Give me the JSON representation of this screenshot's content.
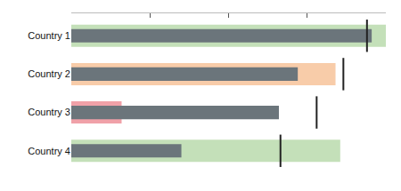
{
  "chart_data": {
    "type": "bullet",
    "orientation": "horizontal",
    "categories": [
      "Country 1",
      "Country 2",
      "Country 3",
      "Country 4"
    ],
    "series": [
      {
        "type": "bar",
        "colors": [
          "#c4e0b9",
          "#f8cca9",
          "#f0a1a8",
          "#c4e0b9"
        ],
        "values": [
          100,
          84,
          16,
          85.5
        ]
      },
      {
        "type": "bar",
        "color": "#6b757b",
        "values": [
          95.5,
          72,
          66,
          35
        ]
      },
      {
        "type": "target",
        "color": "#222222",
        "values": [
          94,
          86.5,
          78,
          66.5
        ]
      }
    ],
    "xlim": [
      0,
      100
    ],
    "xticks": [
      0,
      25,
      50,
      75,
      100
    ],
    "tick_labels": "y"
  }
}
